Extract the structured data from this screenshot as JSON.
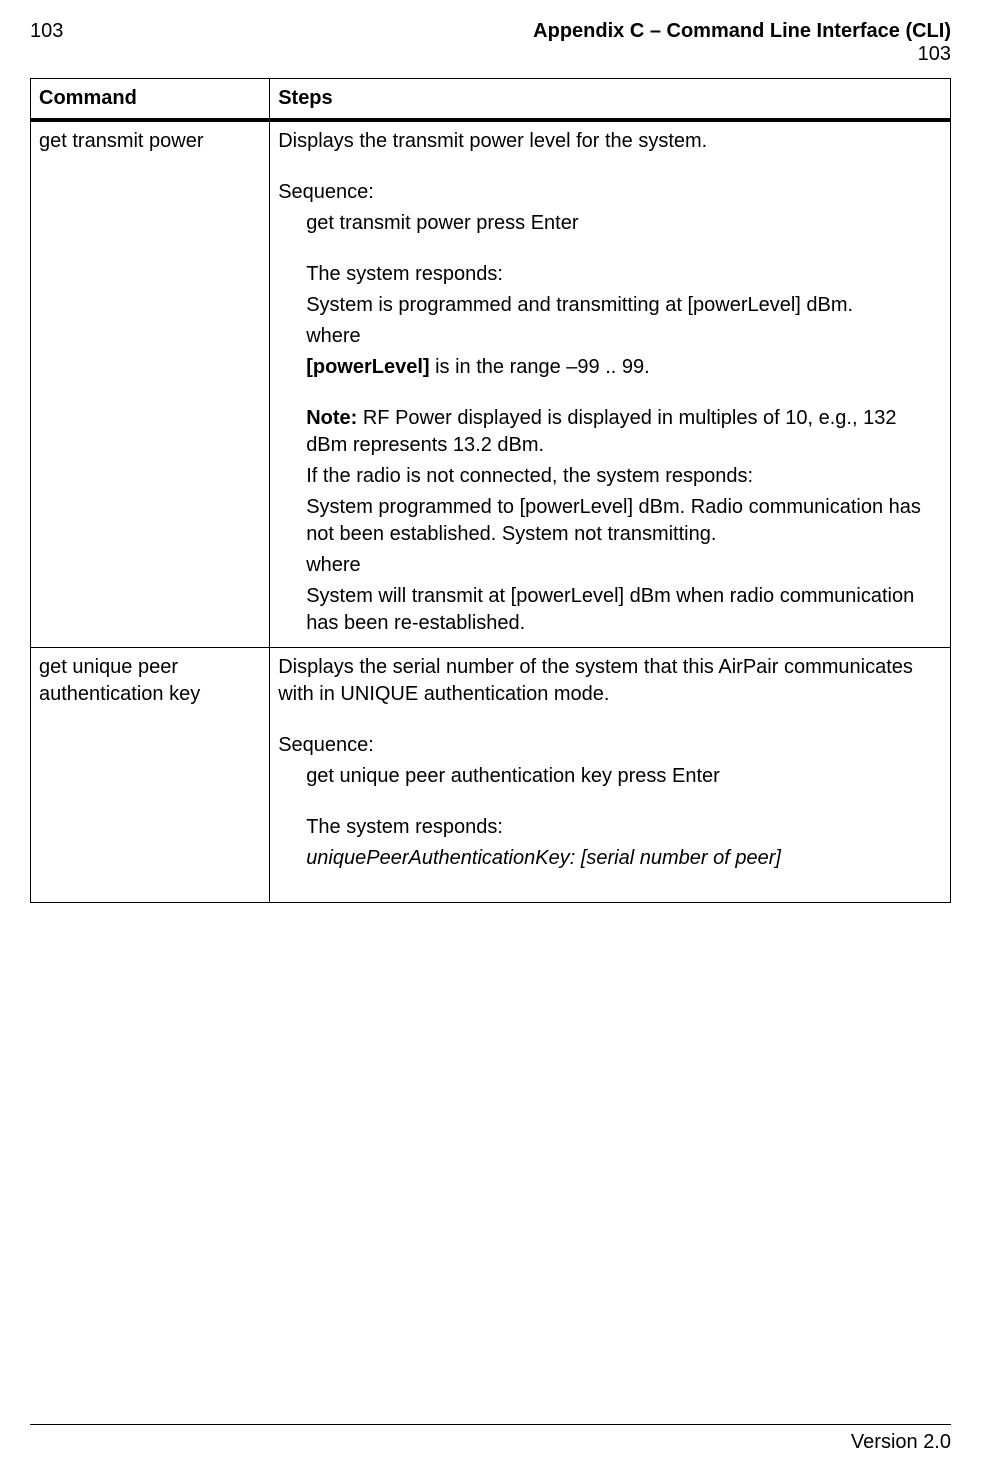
{
  "header": {
    "left_page_num": "103",
    "title": "Appendix C – Command Line Interface (CLI)",
    "right_page_num": "103"
  },
  "table": {
    "columns": [
      "Command",
      "Steps"
    ],
    "rows": [
      {
        "command": "get transmit power",
        "intro": "Displays the transmit power level for the system.",
        "sequence_label": "Sequence:",
        "seq_cmd": "get transmit power press Enter",
        "resp_label": "The system responds:",
        "resp1": "System is programmed and transmitting at [powerLevel] dBm.",
        "where1": "where",
        "range_bold": "[powerLevel]",
        "range_tail": " is in the range –99 .. 99.",
        "note_bold": "Note:",
        "note_tail": " RF Power displayed is displayed in multiples of 10, e.g., 132 dBm represents 13.2 dBm.",
        "not_connected": "If the radio is not connected, the system responds:",
        "resp2": "System programmed to [powerLevel] dBm. Radio communication has not been established. System not transmitting.",
        "where2": "where",
        "resp3": "System will transmit at [powerLevel] dBm when radio communication has been re-established."
      },
      {
        "command": "get unique peer authentication key",
        "intro": "Displays the serial number of the system that this AirPair communicates with in UNIQUE authentication mode.",
        "sequence_label": "Sequence:",
        "seq_cmd": "get unique peer authentication key press Enter",
        "resp_label": "The system responds:",
        "resp_italic": "uniquePeerAuthenticationKey: [serial number of peer]"
      }
    ]
  },
  "footer": {
    "version": "Version 2.0"
  }
}
